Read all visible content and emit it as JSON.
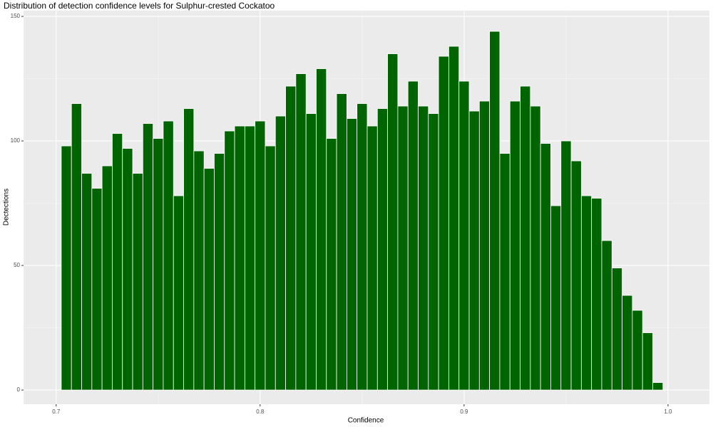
{
  "chart_data": {
    "type": "histogram",
    "title": "Distribution of detection confidence levels for Sulphur-crested Cockatoo",
    "x_label": "Confidence",
    "y_label": "Dectections",
    "color": "#006400",
    "bins": [
      0.7025,
      0.7075,
      0.7125,
      0.7175,
      0.7225,
      0.7275,
      0.7325,
      0.7375,
      0.7425,
      0.7475,
      0.7525,
      0.7575,
      0.7625,
      0.7675,
      0.7725,
      0.7775,
      0.7825,
      0.7875,
      0.7925,
      0.7975,
      0.8025,
      0.8075,
      0.8125,
      0.8175,
      0.8225,
      0.8275,
      0.8325,
      0.8375,
      0.8425,
      0.8475,
      0.8525,
      0.8575,
      0.8625,
      0.8675,
      0.8725,
      0.8775,
      0.8825,
      0.8875,
      0.8925,
      0.8975,
      0.9025,
      0.9075,
      0.9125,
      0.9175,
      0.9225,
      0.9275,
      0.9325,
      0.9375,
      0.9425,
      0.9475,
      0.9525,
      0.9575,
      0.9625,
      0.9675,
      0.9725,
      0.9775,
      0.9825,
      0.9875,
      0.9925,
      0.9975
    ],
    "values": [
      98,
      115,
      87,
      81,
      90,
      103,
      97,
      87,
      107,
      101,
      108,
      78,
      113,
      96,
      89,
      95,
      104,
      106,
      106,
      108,
      98,
      110,
      122,
      127,
      111,
      129,
      101,
      119,
      109,
      115,
      106,
      113,
      135,
      114,
      124,
      114,
      111,
      134,
      138,
      124,
      112,
      116,
      144,
      95,
      116,
      122,
      114,
      99,
      74,
      100,
      92,
      78,
      77,
      60,
      49,
      38,
      32,
      23,
      3
    ],
    "xlim": [
      0.684,
      1.0203
    ],
    "ylim": [
      -5.7,
      152.3
    ],
    "xticks": [
      0.7,
      0.8,
      0.9,
      {
        "value": 1.0,
        "label": "1.0"
      }
    ],
    "yticks": [
      0,
      50,
      100,
      150
    ],
    "x_minor_ticks": [
      0.75,
      0.85,
      0.95
    ],
    "y_minor_ticks": [
      25,
      75,
      125
    ],
    "grid": true
  }
}
